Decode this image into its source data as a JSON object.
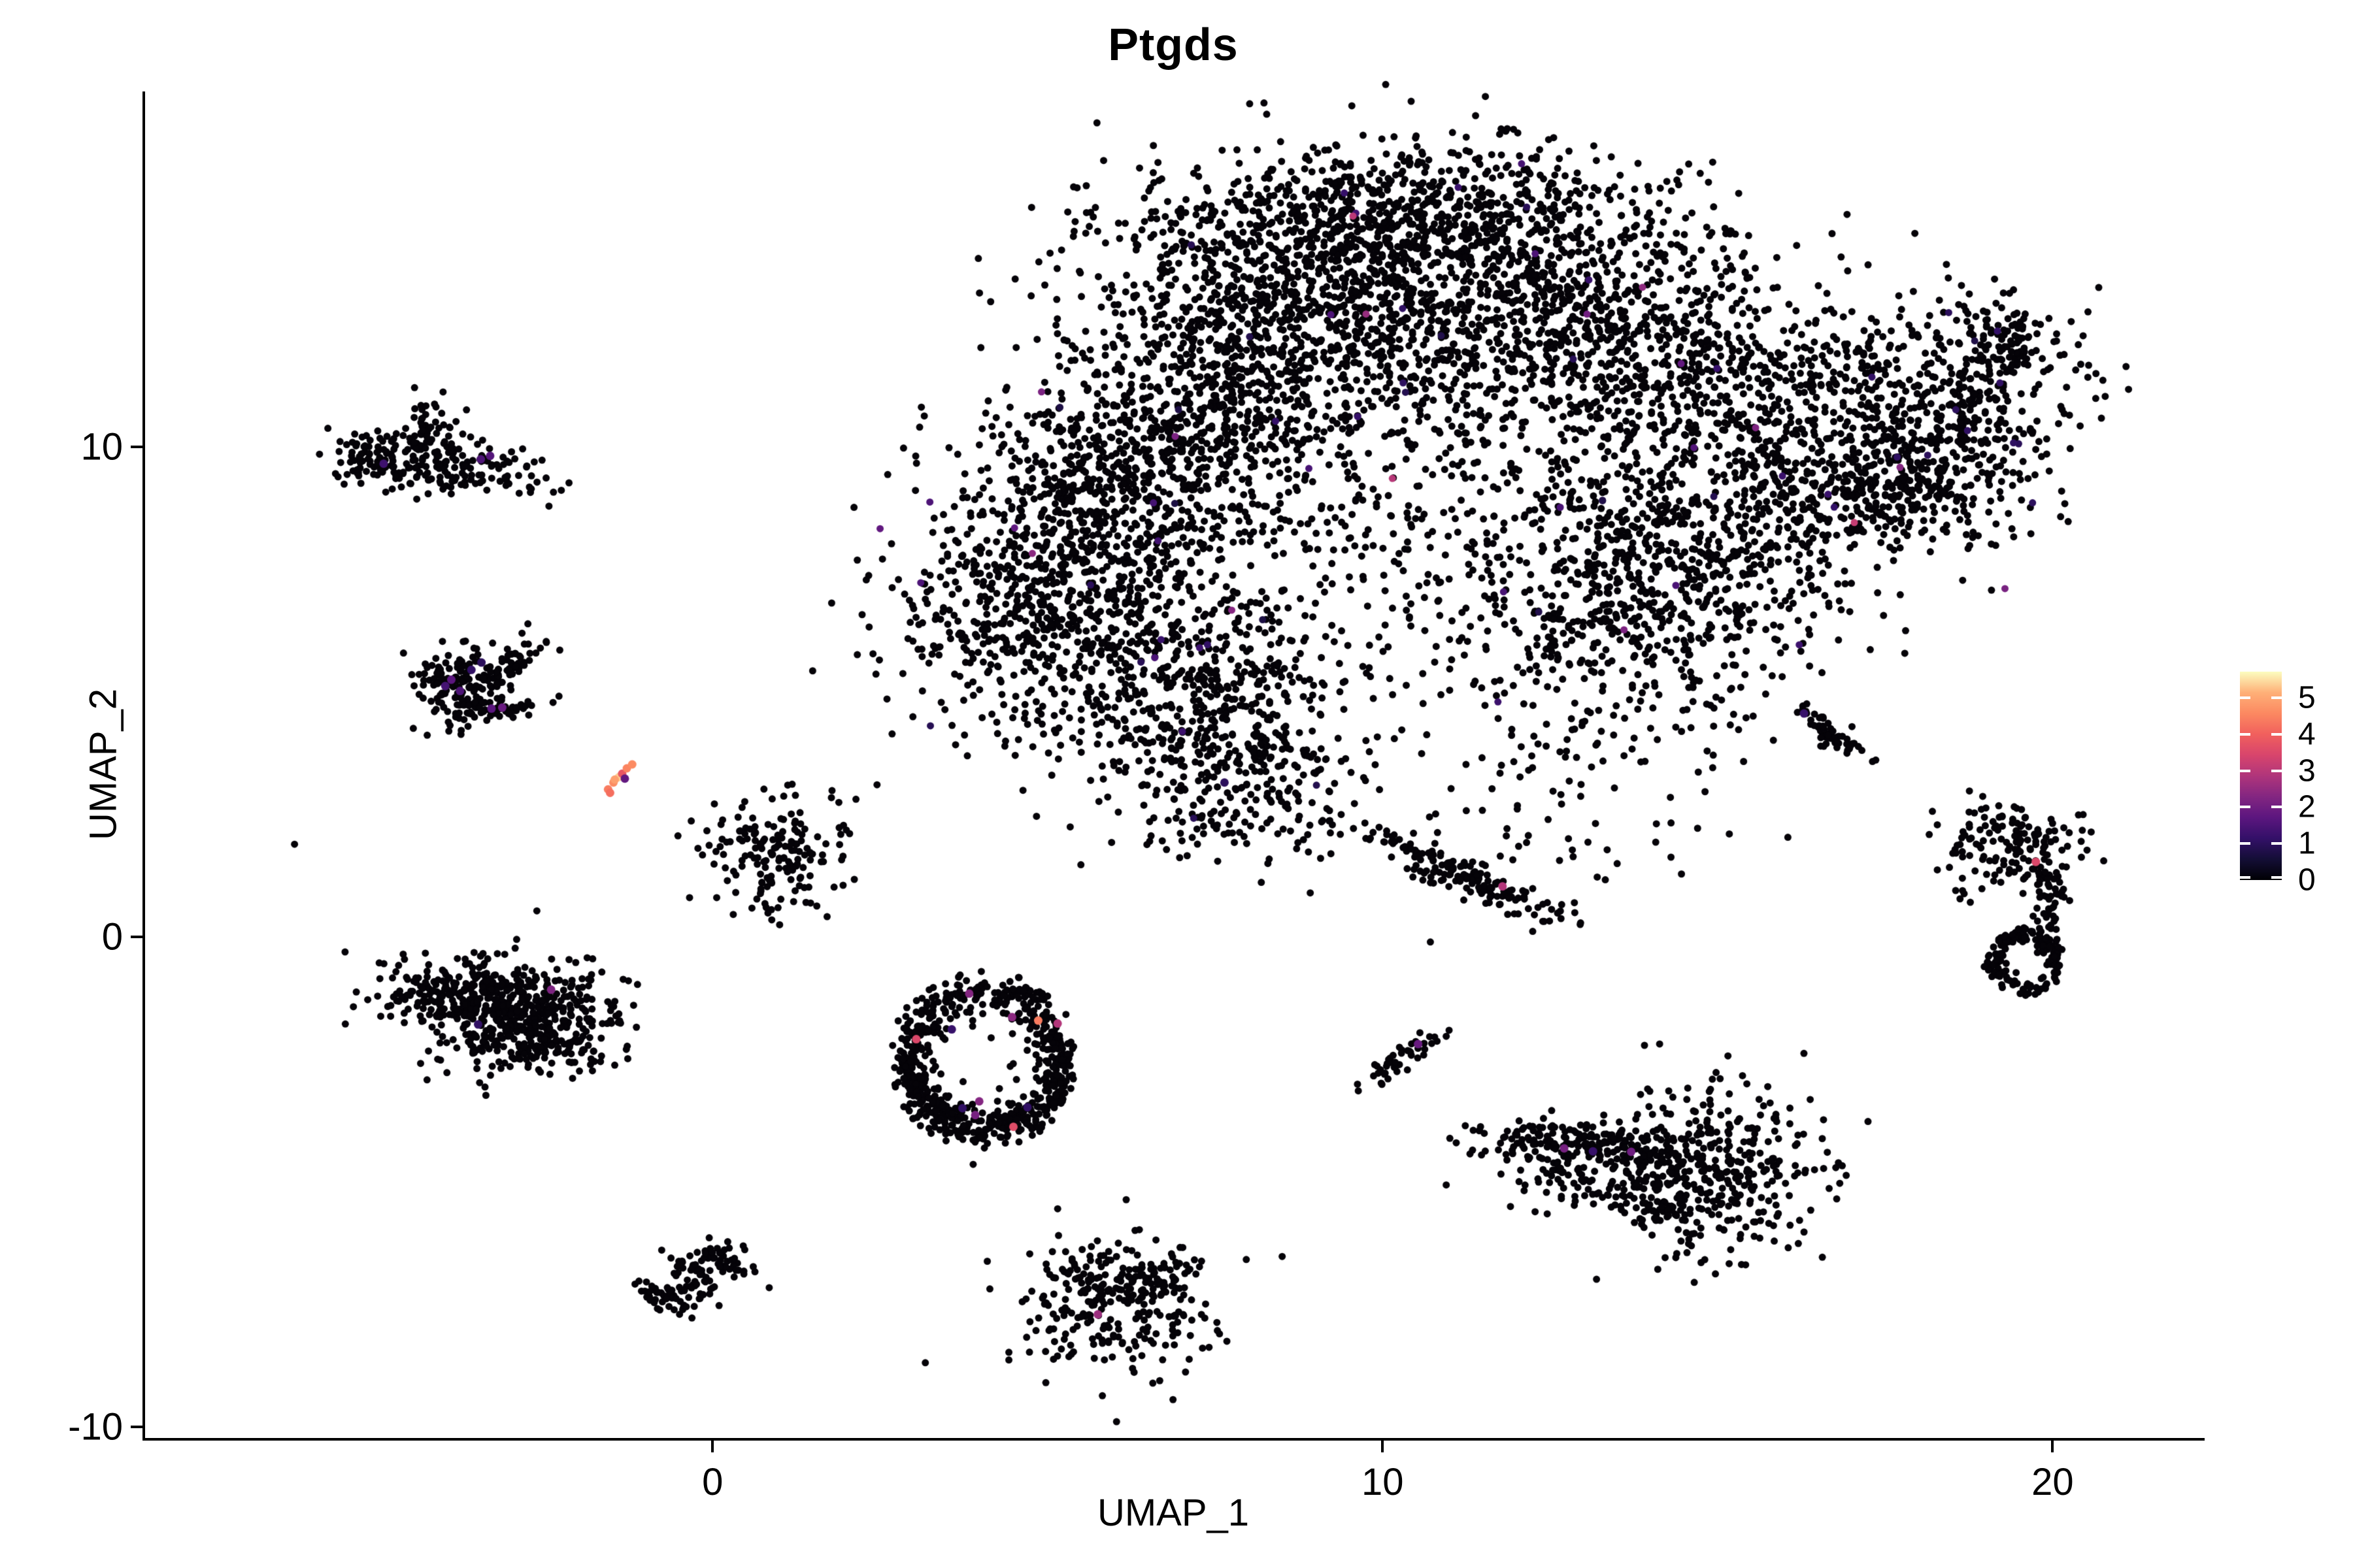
{
  "title": "Ptgds",
  "axes": {
    "x_label": "UMAP_1",
    "y_label": "UMAP_2",
    "x_ticks": [
      {
        "label": "0",
        "value": 0
      },
      {
        "label": "10",
        "value": 10
      },
      {
        "label": "20",
        "value": 20
      }
    ],
    "y_ticks": [
      {
        "label": "10",
        "value": 10
      },
      {
        "label": "0",
        "value": 0
      },
      {
        "label": "-10",
        "value": -10
      }
    ]
  },
  "legend": {
    "ticks": [
      {
        "label": "5",
        "value": 5
      },
      {
        "label": "4",
        "value": 4
      },
      {
        "label": "3",
        "value": 3
      },
      {
        "label": "2",
        "value": 2
      },
      {
        "label": "1",
        "value": 1
      },
      {
        "label": "0",
        "value": 0
      }
    ],
    "vmax": 5.72
  },
  "chart_data": {
    "type": "scatter",
    "title": "Ptgds",
    "xlabel": "UMAP_1",
    "ylabel": "UMAP_2",
    "xlim": [
      -8.49,
      22.25
    ],
    "ylim": [
      -10.26,
      17.26
    ],
    "grid": false,
    "point_color_zero": "#050308",
    "point_radius": 5.5,
    "highlight_radius": 6.5,
    "colormap": {
      "name": "magma",
      "stops": [
        [
          0.0,
          "#000004"
        ],
        [
          0.1,
          "#140e36"
        ],
        [
          0.2,
          "#331068"
        ],
        [
          0.3,
          "#5c167f"
        ],
        [
          0.4,
          "#832681"
        ],
        [
          0.5,
          "#b0357b"
        ],
        [
          0.6,
          "#d8456c"
        ],
        [
          0.7,
          "#f1605d"
        ],
        [
          0.8,
          "#fc8961"
        ],
        [
          0.9,
          "#feb078"
        ],
        [
          1.0,
          "#fcfdbf"
        ]
      ],
      "vmax": 5.72
    },
    "clusters": [
      {
        "name": "main-dome-top",
        "cx": 10.34,
        "cy": 14.73,
        "sx": 1.76,
        "sy": 0.8,
        "rot": 0,
        "n": 780
      },
      {
        "name": "main-dome-left",
        "cx": 8.39,
        "cy": 12.73,
        "sx": 1.46,
        "sy": 1.2,
        "rot": -20,
        "n": 850
      },
      {
        "name": "main-dome-right",
        "cx": 12.29,
        "cy": 12.73,
        "sx": 1.56,
        "sy": 1.2,
        "rot": 14,
        "n": 850
      },
      {
        "name": "main-left-upper",
        "cx": 6.44,
        "cy": 9.79,
        "sx": 1.17,
        "sy": 1.47,
        "rot": -38,
        "n": 750
      },
      {
        "name": "main-left-arm",
        "cx": 4.98,
        "cy": 7.12,
        "sx": 1.07,
        "sy": 1.33,
        "rot": -26,
        "n": 640
      },
      {
        "name": "main-left-bottom",
        "cx": 6.93,
        "cy": 5.12,
        "sx": 1.27,
        "sy": 1.2,
        "rot": 0,
        "n": 520
      },
      {
        "name": "main-foot",
        "cx": 7.8,
        "cy": 3.3,
        "sx": 0.78,
        "sy": 0.93,
        "rot": 0,
        "n": 260
      },
      {
        "name": "main-center-sparse",
        "cx": 9.85,
        "cy": 8.99,
        "sx": 1.95,
        "sy": 1.6,
        "rot": 0,
        "n": 380
      },
      {
        "name": "main-midright",
        "cx": 13.76,
        "cy": 7.12,
        "sx": 1.37,
        "sy": 1.6,
        "rot": 0,
        "n": 750
      },
      {
        "name": "main-bridge",
        "cx": 14.93,
        "cy": 11.13,
        "sx": 1.27,
        "sy": 1.2,
        "rot": 44,
        "n": 520
      },
      {
        "name": "main-pinch",
        "cx": 16.2,
        "cy": 8.72,
        "sx": 0.68,
        "sy": 0.93,
        "rot": 0,
        "n": 170
      },
      {
        "name": "main-wing",
        "cx": 18.15,
        "cy": 10.59,
        "sx": 1.07,
        "sy": 1.2,
        "rot": 38,
        "n": 560
      },
      {
        "name": "main-wing-tip",
        "cx": 19.27,
        "cy": 12.13,
        "sx": 0.39,
        "sy": 0.53,
        "rot": 44,
        "n": 115
      },
      {
        "name": "main-wing-tail",
        "cx": 17.66,
        "cy": 9.06,
        "sx": 0.59,
        "sy": 0.53,
        "rot": 0,
        "n": 150
      },
      {
        "name": "main-below-sparse",
        "cx": 12.98,
        "cy": 2.99,
        "sx": 1.17,
        "sy": 1.2,
        "rot": 0,
        "n": 85
      },
      {
        "name": "main-bridge-under",
        "cx": 14.93,
        "cy": 7.39,
        "sx": 0.78,
        "sy": 0.8,
        "rot": 0,
        "n": 100
      },
      {
        "name": "tl-round",
        "cx": -5.09,
        "cy": 9.79,
        "sx": 0.27,
        "sy": 0.29,
        "rot": 0,
        "n": 60
      },
      {
        "name": "tl-upper",
        "cx": -4.24,
        "cy": 10.33,
        "sx": 0.24,
        "sy": 0.33,
        "rot": 0,
        "n": 55
      },
      {
        "name": "tl-bar",
        "cx": -3.93,
        "cy": 9.59,
        "sx": 0.73,
        "sy": 0.29,
        "rot": -7,
        "n": 165
      },
      {
        "name": "chevron-arm-up",
        "cx": -3.27,
        "cy": 5.29,
        "sx": 0.55,
        "sy": 0.16,
        "rot": 52,
        "n": 90
      },
      {
        "name": "chevron-blob",
        "cx": -3.9,
        "cy": 5.12,
        "sx": 0.3,
        "sy": 0.4,
        "rot": 0,
        "n": 115
      },
      {
        "name": "chevron-arm-low",
        "cx": -3.17,
        "cy": 4.63,
        "sx": 0.32,
        "sy": 0.1,
        "rot": 10,
        "n": 45
      },
      {
        "name": "small-round",
        "cx": 0.93,
        "cy": 1.72,
        "sx": 0.54,
        "sy": 0.64,
        "rot": 0,
        "n": 175
      },
      {
        "name": "triangle-a",
        "cx": -3.61,
        "cy": -1.15,
        "sx": 0.68,
        "sy": 0.37,
        "rot": 0,
        "n": 250
      },
      {
        "name": "triangle-b",
        "cx": -2.73,
        "cy": -1.48,
        "sx": 0.68,
        "sy": 0.4,
        "rot": 0,
        "n": 250
      },
      {
        "name": "triangle-c",
        "cx": -3.0,
        "cy": -2.08,
        "sx": 0.59,
        "sy": 0.37,
        "rot": 0,
        "n": 150
      },
      {
        "name": "triangle-tail",
        "cx": -2.34,
        "cy": -2.25,
        "sx": 0.39,
        "sy": 0.24,
        "rot": 0,
        "n": 70
      },
      {
        "name": "streak-mid",
        "cx": 11.15,
        "cy": 1.29,
        "sx": 0.95,
        "sy": 0.17,
        "rot": -32,
        "n": 175
      },
      {
        "name": "streak-small",
        "cx": 10.24,
        "cy": -2.51,
        "sx": 0.42,
        "sy": 0.09,
        "rot": 46,
        "n": 48
      },
      {
        "name": "butterfly-arc",
        "cx": 13.12,
        "cy": -4.22,
        "sx": 0.85,
        "sy": 0.25,
        "rot": -5,
        "n": 205
      },
      {
        "name": "butterfly-under",
        "cx": 13.46,
        "cy": -4.88,
        "sx": 0.8,
        "sy": 0.35,
        "rot": 0,
        "n": 120
      },
      {
        "name": "butterfly-tail",
        "cx": 14.24,
        "cy": -5.55,
        "sx": 0.35,
        "sy": 0.25,
        "rot": 0,
        "n": 60
      },
      {
        "name": "butterfly-right",
        "cx": 15.02,
        "cy": -4.75,
        "sx": 0.83,
        "sy": 1.0,
        "rot": 0,
        "n": 330
      },
      {
        "name": "bottom-center",
        "cx": 6.07,
        "cy": -7.55,
        "sx": 0.78,
        "sy": 0.73,
        "rot": 0,
        "n": 240
      },
      {
        "name": "bottom-center-nw",
        "cx": 5.56,
        "cy": -6.88,
        "sx": 0.25,
        "sy": 0.3,
        "rot": 0,
        "n": 40
      },
      {
        "name": "bottom-center-ne",
        "cx": 6.63,
        "cy": -6.95,
        "sx": 0.3,
        "sy": 0.28,
        "rot": 0,
        "n": 40
      },
      {
        "name": "hook-a",
        "cx": -0.68,
        "cy": -7.35,
        "sx": 0.25,
        "sy": 0.15,
        "rot": -26,
        "n": 45
      },
      {
        "name": "hook-b",
        "cx": -0.25,
        "cy": -7.0,
        "sx": 0.3,
        "sy": 0.15,
        "rot": -53,
        "n": 45
      },
      {
        "name": "hook-c",
        "cx": 0.25,
        "cy": -6.6,
        "sx": 0.3,
        "sy": 0.15,
        "rot": -38,
        "n": 45
      },
      {
        "name": "right-top-lobe",
        "cx": 19.46,
        "cy": 1.79,
        "sx": 0.54,
        "sy": 0.47,
        "rot": 0,
        "n": 155
      },
      {
        "name": "right-chain",
        "cx": 19.95,
        "cy": 0.65,
        "sx": 0.12,
        "sy": 0.55,
        "rot": 0,
        "n": 55
      },
      {
        "name": "right-ring-inner",
        "cx": 19.61,
        "cy": -0.51,
        "sx": 0.2,
        "sy": 0.25,
        "rot": 0,
        "n": 4
      },
      {
        "name": "ring-inner-sparse",
        "cx": 4.05,
        "cy": -2.51,
        "sx": 0.55,
        "sy": 0.7,
        "rot": 0,
        "n": 14
      },
      {
        "name": "diag-small-right",
        "cx": 16.68,
        "cy": 4.16,
        "sx": 0.38,
        "sy": 0.1,
        "rot": -47,
        "n": 62
      }
    ],
    "rings": [
      {
        "name": "center-ring",
        "cx": 4.05,
        "cy": -2.51,
        "rx": 1.32,
        "ry": 1.67,
        "n": 540,
        "mean": 0.84,
        "std": 0.12,
        "bottom_extra": 130
      },
      {
        "name": "right-ring",
        "cx": 19.61,
        "cy": -0.51,
        "rx": 0.54,
        "ry": 0.67,
        "n": 135,
        "mean": 0.85,
        "std": 0.12,
        "bottom_extra": 0
      }
    ],
    "singles": [
      [
        -4.76,
        10.17
      ],
      [
        -6.24,
        1.89
      ],
      [
        -1.79,
        -0.45
      ],
      [
        18.68,
        0.88
      ],
      [
        19.14,
        1.55
      ],
      [
        18.98,
        -0.61
      ]
    ],
    "sprinkles": {
      "comment": "low-expression colored cells scattered inside the main blob",
      "source_clusters": [
        0,
        1,
        2,
        3,
        4,
        5,
        6,
        7,
        8,
        9,
        10,
        11,
        12,
        13
      ],
      "groups": [
        {
          "n": 62,
          "vmin": 0.7,
          "vmax": 1.6
        },
        {
          "n": 14,
          "vmin": 1.7,
          "vmax": 2.6
        },
        {
          "n": 3,
          "vmin": 2.8,
          "vmax": 3.4
        }
      ]
    },
    "highlight_points": [
      {
        "x": -1.56,
        "y": 3.01,
        "v": 4.4
      },
      {
        "x": -1.48,
        "y": 3.15,
        "v": 4.6
      },
      {
        "x": -1.4,
        "y": 3.26,
        "v": 5.4
      },
      {
        "x": -1.46,
        "y": 3.21,
        "v": 4.9
      },
      {
        "x": -1.35,
        "y": 3.33,
        "v": 3.8
      },
      {
        "x": -1.28,
        "y": 3.44,
        "v": 4.5
      },
      {
        "x": -1.2,
        "y": 3.52,
        "v": 4.6
      },
      {
        "x": -1.53,
        "y": 2.94,
        "v": 4.2
      },
      {
        "x": -1.31,
        "y": 3.23,
        "v": 1.8
      },
      {
        "x": 3.83,
        "y": -1.16,
        "v": 2.3
      },
      {
        "x": 4.47,
        "y": -1.64,
        "v": 2.4
      },
      {
        "x": 4.86,
        "y": -1.71,
        "v": 4.4
      },
      {
        "x": 5.15,
        "y": -1.77,
        "v": 2.9
      },
      {
        "x": 3.57,
        "y": -1.89,
        "v": 1.2
      },
      {
        "x": 3.04,
        "y": -2.09,
        "v": 3.5
      },
      {
        "x": 3.98,
        "y": -3.36,
        "v": 2.3
      },
      {
        "x": 3.73,
        "y": -3.5,
        "v": 1.1
      },
      {
        "x": 3.92,
        "y": -3.64,
        "v": 2.1
      },
      {
        "x": 4.7,
        "y": -3.48,
        "v": 1.1
      },
      {
        "x": 4.49,
        "y": -3.88,
        "v": 3.6
      },
      {
        "x": 12.71,
        "y": -4.32,
        "v": 2.1
      },
      {
        "x": 13.14,
        "y": -4.38,
        "v": 1.2
      },
      {
        "x": 13.71,
        "y": -4.39,
        "v": 2.0
      },
      {
        "x": 11.79,
        "y": 1.03,
        "v": 2.9
      },
      {
        "x": 10.53,
        "y": -2.19,
        "v": 1.9
      },
      {
        "x": 5.75,
        "y": -7.71,
        "v": 2.6
      },
      {
        "x": 19.75,
        "y": 1.53,
        "v": 3.5
      },
      {
        "x": 16.29,
        "y": 4.56,
        "v": 1.2
      },
      {
        "x": -3.46,
        "y": 9.75,
        "v": 1.5
      },
      {
        "x": -3.32,
        "y": 9.82,
        "v": 1.6
      },
      {
        "x": -4.91,
        "y": 9.66,
        "v": 1.3
      },
      {
        "x": -3.9,
        "y": 5.25,
        "v": 1.7
      },
      {
        "x": -3.99,
        "y": 5.12,
        "v": 1.4
      },
      {
        "x": -3.77,
        "y": 5.02,
        "v": 1.5
      },
      {
        "x": -3.3,
        "y": 4.66,
        "v": 1.7
      },
      {
        "x": -3.14,
        "y": 4.68,
        "v": 1.9
      },
      {
        "x": -3.45,
        "y": 5.6,
        "v": 1.0
      },
      {
        "x": -3.6,
        "y": 5.45,
        "v": 1.1
      },
      {
        "x": -2.41,
        "y": -1.08,
        "v": 2.2
      },
      {
        "x": -3.5,
        "y": -1.79,
        "v": 1.1
      },
      {
        "x": 7.64,
        "y": 3.15,
        "v": 1.0
      }
    ]
  }
}
